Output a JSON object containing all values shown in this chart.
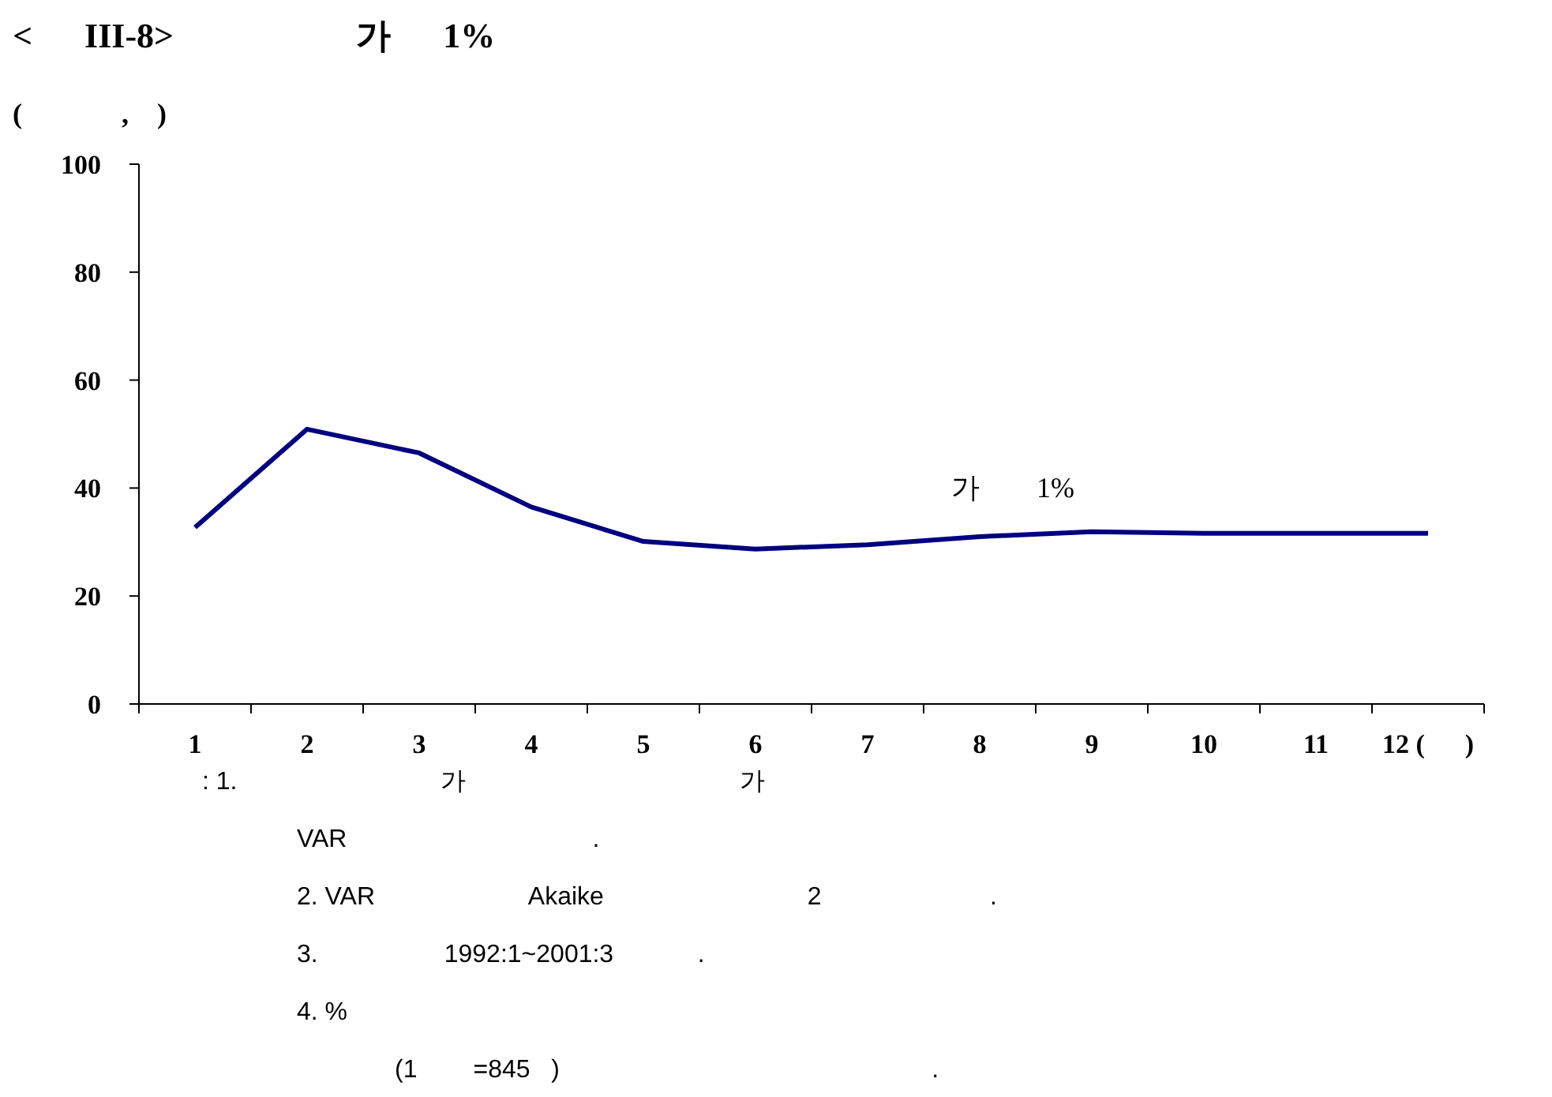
{
  "chart_data": {
    "type": "line",
    "title": "<      III-8>                     가      1%",
    "subtitle": "(              ,    )",
    "categories": [
      "1",
      "2",
      "3",
      "4",
      "5",
      "6",
      "7",
      "8",
      "9",
      "10",
      "11",
      "12 (      )"
    ],
    "series": [
      {
        "color": "#000080",
        "values": [
          32.7,
          50.9,
          46.5,
          36.5,
          30.1,
          28.7,
          29.5,
          31.0,
          31.9,
          31.6,
          31.6,
          31.6
        ]
      }
    ],
    "ylim": [
      0,
      100
    ],
    "yticks": [
      0,
      20,
      40,
      60,
      80,
      100
    ],
    "grid": false,
    "marker": "none",
    "line_style": "solid",
    "annotations": [
      "가        1%",
      ": 1.                             가                                       가",
      "VAR                                   .",
      "2. VAR                      Akaike                             2                        .",
      "3.                  1992:1~2001:3            .",
      "4. %",
      "(1        =845   )                                                     ."
    ]
  }
}
